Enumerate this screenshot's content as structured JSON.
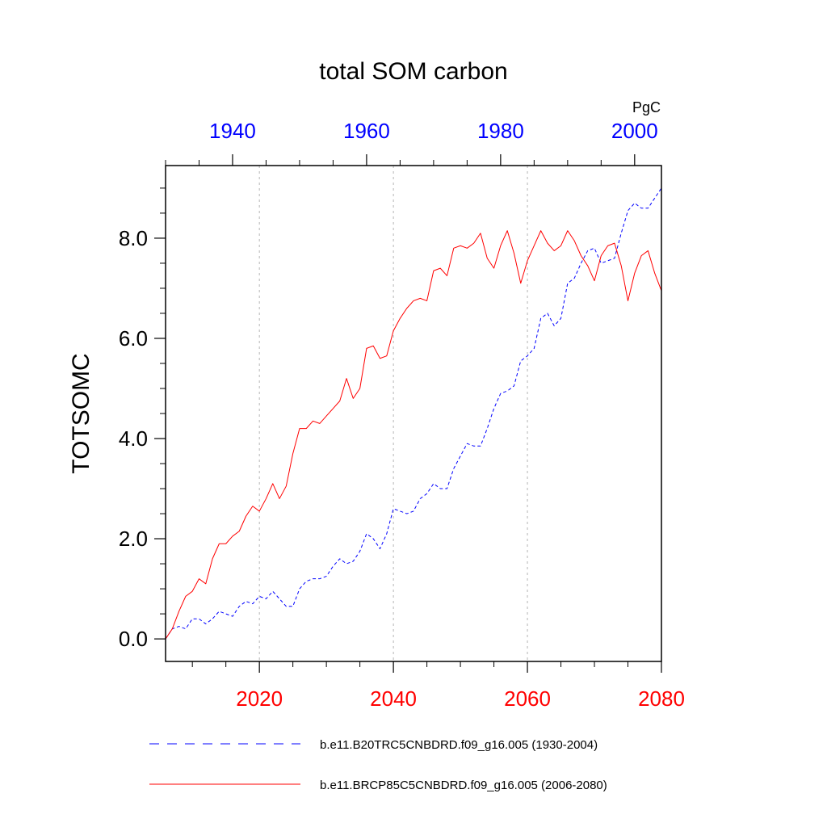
{
  "chart_data": {
    "type": "line",
    "title": "total SOM carbon",
    "units": "PgC",
    "ylabel": "TOTSOMC",
    "ylim": [
      -0.45,
      9.45
    ],
    "y_ticks": [
      0,
      2,
      4,
      6,
      8
    ],
    "y_tick_labels": [
      "0.0",
      "2.0",
      "4.0",
      "6.0",
      "8.0"
    ],
    "grid": "vertical dashed at major bottom-axis ticks",
    "bottom_axis": {
      "range": [
        2006,
        2080
      ],
      "ticks": [
        2020,
        2040,
        2060,
        2080
      ],
      "tick_labels": [
        "2020",
        "2040",
        "2060",
        "2080"
      ],
      "color": "#ff0000"
    },
    "top_axis": {
      "range": [
        1930,
        2004
      ],
      "ticks": [
        1940,
        1960,
        1980,
        2000
      ],
      "tick_labels": [
        "1940",
        "1960",
        "1980",
        "2000"
      ],
      "color": "#0000ff"
    },
    "legend_position": "bottom",
    "series": [
      {
        "name": "b.e11.B20TRC5CNBDRD.f09_g16.005 (1930-2004)",
        "color": "#0000ff",
        "style": "dashed",
        "axis": "top",
        "x_start": 1930,
        "values": [
          0.0,
          0.2,
          0.25,
          0.2,
          0.4,
          0.4,
          0.3,
          0.4,
          0.55,
          0.5,
          0.45,
          0.65,
          0.75,
          0.7,
          0.85,
          0.8,
          0.95,
          0.8,
          0.65,
          0.65,
          1.0,
          1.15,
          1.2,
          1.2,
          1.25,
          1.45,
          1.6,
          1.5,
          1.55,
          1.75,
          2.1,
          2.0,
          1.8,
          2.1,
          2.6,
          2.55,
          2.5,
          2.55,
          2.8,
          2.9,
          3.1,
          3.0,
          3.0,
          3.4,
          3.65,
          3.9,
          3.85,
          3.85,
          4.2,
          4.6,
          4.9,
          4.95,
          5.05,
          5.55,
          5.65,
          5.8,
          6.4,
          6.5,
          6.25,
          6.4,
          7.1,
          7.2,
          7.5,
          7.75,
          7.8,
          7.5,
          7.55,
          7.6,
          8.1,
          8.55,
          8.7,
          8.6,
          8.6,
          8.8,
          9.0
        ]
      },
      {
        "name": "b.e11.BRCP85C5CNBDRD.f09_g16.005 (2006-2080)",
        "color": "#ff0000",
        "style": "solid",
        "axis": "bottom",
        "x_start": 2006,
        "values": [
          0.0,
          0.2,
          0.55,
          0.85,
          0.95,
          1.2,
          1.1,
          1.6,
          1.9,
          1.9,
          2.05,
          2.15,
          2.45,
          2.65,
          2.55,
          2.8,
          3.1,
          2.8,
          3.05,
          3.7,
          4.2,
          4.2,
          4.35,
          4.3,
          4.45,
          4.6,
          4.75,
          5.2,
          4.8,
          5.0,
          5.8,
          5.85,
          5.6,
          5.65,
          6.15,
          6.4,
          6.6,
          6.75,
          6.8,
          6.75,
          7.35,
          7.4,
          7.25,
          7.8,
          7.85,
          7.8,
          7.9,
          8.1,
          7.6,
          7.4,
          7.85,
          8.15,
          7.7,
          7.1,
          7.55,
          7.85,
          8.15,
          7.9,
          7.75,
          7.85,
          8.15,
          7.95,
          7.65,
          7.45,
          7.15,
          7.65,
          7.85,
          7.9,
          7.45,
          6.75,
          7.3,
          7.65,
          7.75,
          7.3,
          6.95
        ]
      }
    ]
  }
}
